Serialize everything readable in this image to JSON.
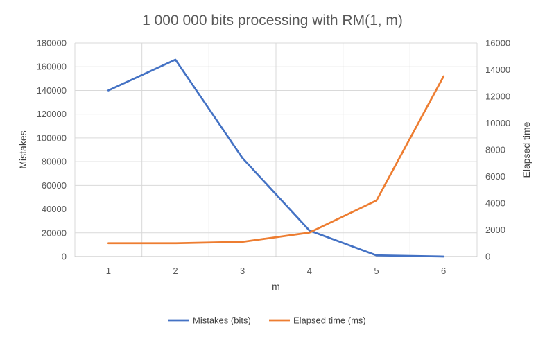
{
  "chart_data": {
    "type": "line",
    "title": "1 000 000 bits processing with RM(1, m)",
    "xlabel": "m",
    "ylabel_left": "Mistakes",
    "ylabel_right": "Elapsed time",
    "categories": [
      "1",
      "2",
      "3",
      "4",
      "5",
      "6"
    ],
    "y_left_lim": [
      0,
      180000
    ],
    "y_left_ticks": [
      "0",
      "20000",
      "40000",
      "60000",
      "80000",
      "100000",
      "120000",
      "140000",
      "160000",
      "180000"
    ],
    "y_right_lim": [
      0,
      16000
    ],
    "y_right_ticks": [
      "0",
      "2000",
      "4000",
      "6000",
      "8000",
      "10000",
      "12000",
      "14000",
      "16000"
    ],
    "grid": true,
    "legend_position": "bottom",
    "series": [
      {
        "name": "Mistakes (bits)",
        "axis": "left",
        "color": "#4472c4",
        "values": [
          140000,
          166000,
          83000,
          22000,
          1000,
          0
        ]
      },
      {
        "name": "Elapsed time (ms)",
        "axis": "right",
        "color": "#ed7d31",
        "values": [
          1000,
          1000,
          1100,
          1800,
          4200,
          13500
        ]
      }
    ]
  }
}
